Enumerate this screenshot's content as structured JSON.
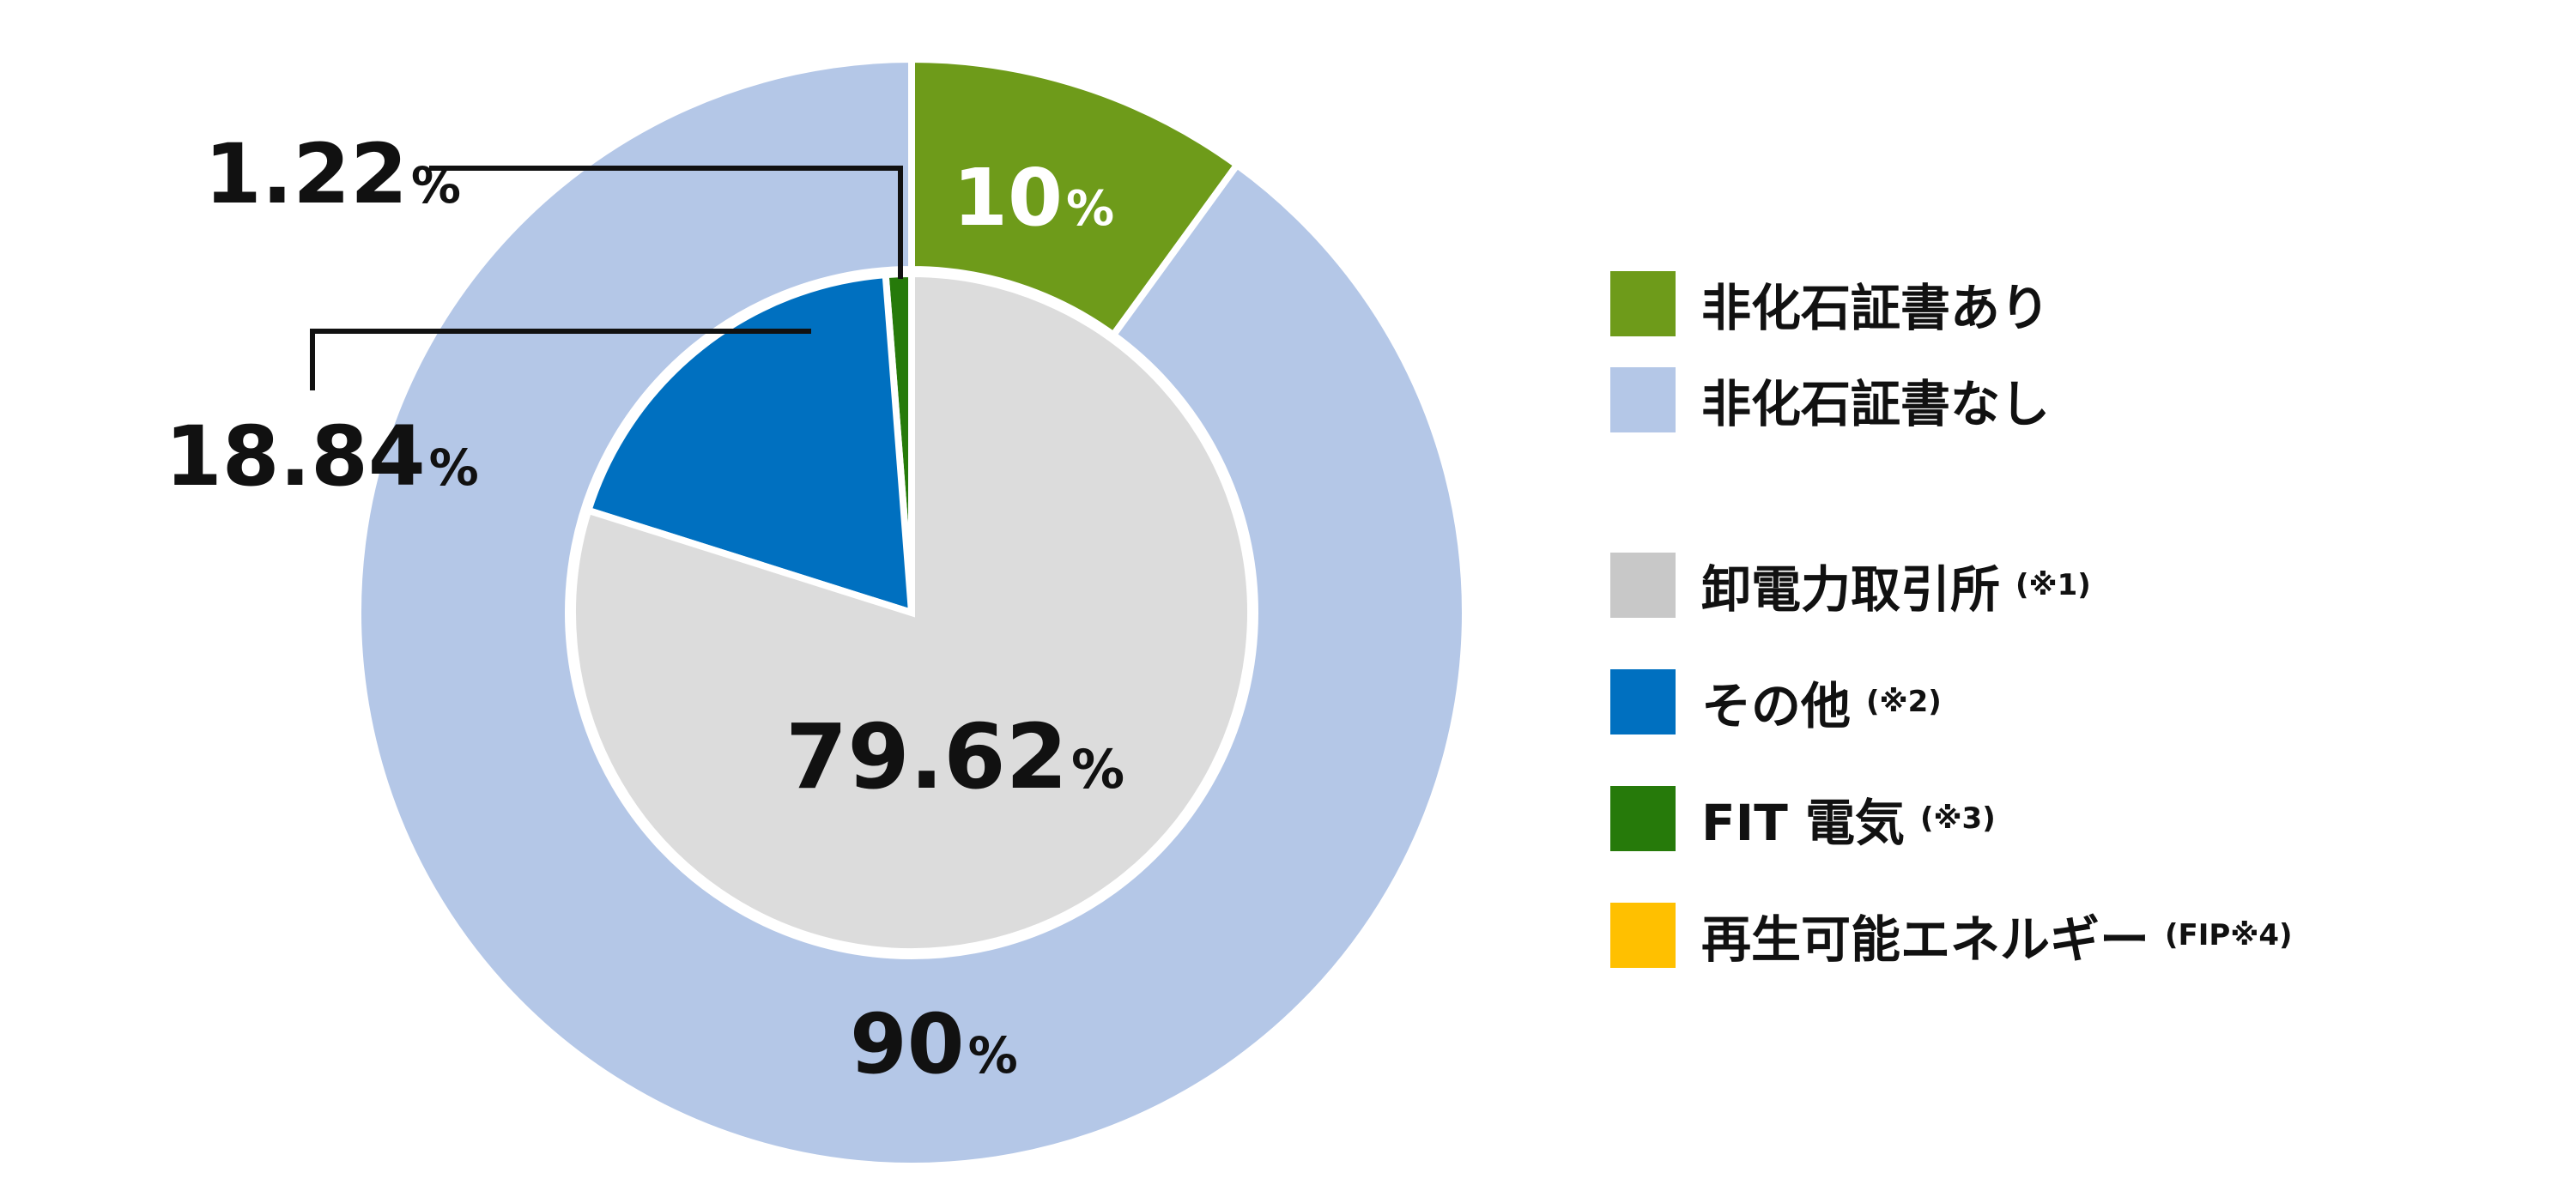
{
  "chart_data": [
    {
      "type": "pie",
      "variant": "donut-outer-ring",
      "categories": [
        "非化石証書あり",
        "非化石証書なし"
      ],
      "values": [
        10,
        90
      ],
      "colors": [
        "#6e9b1a",
        "#b4c7e7"
      ],
      "data_labels": [
        {
          "number": "10",
          "unit": "%",
          "color": "#ffffff"
        },
        {
          "number": "90",
          "unit": "%",
          "color": "#111111"
        }
      ]
    },
    {
      "type": "pie",
      "variant": "inner-pie",
      "categories": [
        "卸電力取引所",
        "その他",
        "FIT 電気",
        "再生可能エネルギー"
      ],
      "values": [
        79.62,
        18.84,
        1.22,
        0
      ],
      "colors": [
        "#dcdcdc",
        "#0070c0",
        "#267a0a",
        "#ffc000"
      ],
      "data_labels": [
        {
          "number": "79.62",
          "unit": "%",
          "color": "#111111"
        },
        {
          "number": "18.84",
          "unit": "%",
          "color": "#111111"
        },
        {
          "number": "1.22",
          "unit": "%",
          "color": "#111111"
        }
      ]
    }
  ],
  "legend": {
    "items": [
      {
        "label": "非化石証書あり",
        "note": "",
        "color": "#6e9b1a"
      },
      {
        "label": "非化石証書なし",
        "note": "",
        "color": "#b4c7e7"
      },
      {
        "label": "卸電力取引所",
        "note": "(※1)",
        "color": "#c8c8c8"
      },
      {
        "label": "その他",
        "note": "(※2)",
        "color": "#0070c0"
      },
      {
        "label": "FIT 電気",
        "note": "(※3)",
        "color": "#267a0a"
      },
      {
        "label": "再生可能エネルギー",
        "note": "(FIP※4)",
        "color": "#ffc000"
      }
    ]
  }
}
